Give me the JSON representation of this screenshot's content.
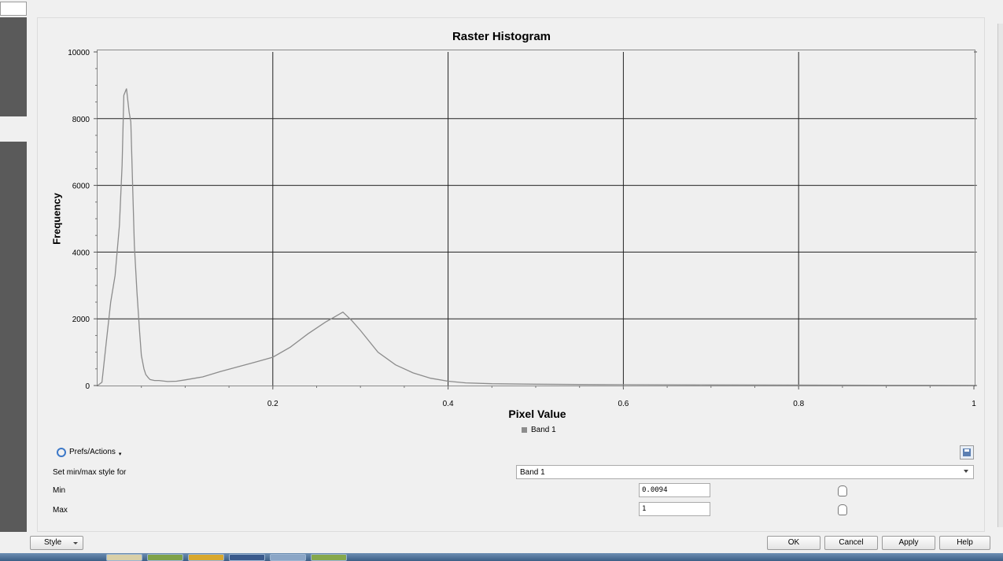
{
  "chart_data": {
    "type": "line",
    "title": "Raster Histogram",
    "xlabel": "Pixel Value",
    "ylabel": "Frequency",
    "xlim": [
      0,
      1
    ],
    "ylim": [
      0,
      10000
    ],
    "x_ticks": [
      "0.2",
      "0.4",
      "0.6",
      "0.8",
      "1"
    ],
    "y_ticks": [
      "0",
      "2000",
      "4000",
      "6000",
      "8000",
      "10000"
    ],
    "grid": true,
    "legend": "bottom-center",
    "series": [
      {
        "name": "Band 1",
        "color": "#8c8c8c",
        "x": [
          0.0,
          0.005,
          0.01,
          0.015,
          0.02,
          0.025,
          0.028,
          0.03,
          0.033,
          0.036,
          0.038,
          0.04,
          0.042,
          0.045,
          0.048,
          0.05,
          0.053,
          0.055,
          0.058,
          0.06,
          0.065,
          0.07,
          0.08,
          0.09,
          0.1,
          0.12,
          0.14,
          0.16,
          0.18,
          0.2,
          0.22,
          0.24,
          0.26,
          0.27,
          0.28,
          0.29,
          0.3,
          0.32,
          0.34,
          0.36,
          0.38,
          0.4,
          0.42,
          0.45,
          0.5,
          0.55,
          0.6,
          0.7,
          0.8,
          0.9,
          1.0
        ],
        "y": [
          0,
          100,
          1300,
          2500,
          3300,
          4800,
          6600,
          8700,
          8900,
          8200,
          7900,
          6000,
          4200,
          2800,
          1600,
          900,
          500,
          330,
          230,
          180,
          150,
          150,
          120,
          130,
          170,
          260,
          420,
          560,
          700,
          850,
          1150,
          1550,
          1900,
          2050,
          2200,
          1950,
          1650,
          1000,
          620,
          380,
          220,
          130,
          80,
          55,
          40,
          30,
          25,
          20,
          15,
          10,
          5
        ]
      }
    ]
  },
  "legend": {
    "band_label": "Band 1"
  },
  "controls": {
    "prefs_actions_label": "Prefs/Actions",
    "set_minmax_label": "Set min/max style for",
    "band_selected": "Band 1",
    "min_label": "Min",
    "min_value": "0.0094",
    "max_label": "Max",
    "max_value": "1"
  },
  "buttons": {
    "style_label": "Style",
    "ok_label": "OK",
    "cancel_label": "Cancel",
    "apply_label": "Apply",
    "help_label": "Help"
  },
  "icons": {
    "prefs": "zoom-tool-icon",
    "save": "save-icon",
    "min_picker": "hand-pointer-icon",
    "max_picker": "hand-pointer-icon"
  }
}
